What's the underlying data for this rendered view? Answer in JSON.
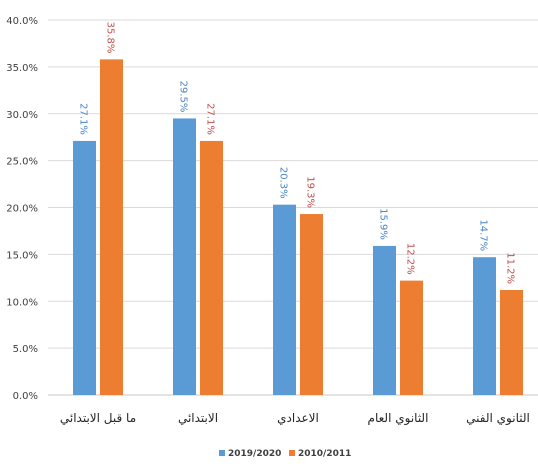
{
  "chart_data": {
    "type": "bar",
    "categories": [
      "ما قبل الابتدائي",
      "الابتدائي",
      "الاعدادي",
      "الثانوي العام",
      "الثانوي الفني"
    ],
    "series": [
      {
        "name": "2019/2020",
        "color": "#5B9BD5",
        "values": [
          27.1,
          29.5,
          20.3,
          15.9,
          14.7
        ],
        "labels": [
          "27.1%",
          "29.5%",
          "20.3%",
          "15.9%",
          "14.7%"
        ]
      },
      {
        "name": "2010/2011",
        "color": "#ED7D31",
        "values": [
          35.8,
          27.1,
          19.3,
          12.2,
          11.2
        ],
        "labels": [
          "35.8%",
          "27.1%",
          "19.3%",
          "12.2%",
          "11.2%"
        ]
      }
    ],
    "ylim": [
      0,
      40
    ],
    "yticks": [
      "0.0%",
      "5.0%",
      "10.0%",
      "15.0%",
      "20.0%",
      "25.0%",
      "30.0%",
      "35.0%",
      "40.0%"
    ],
    "grid": true,
    "legend_position": "bottom"
  }
}
